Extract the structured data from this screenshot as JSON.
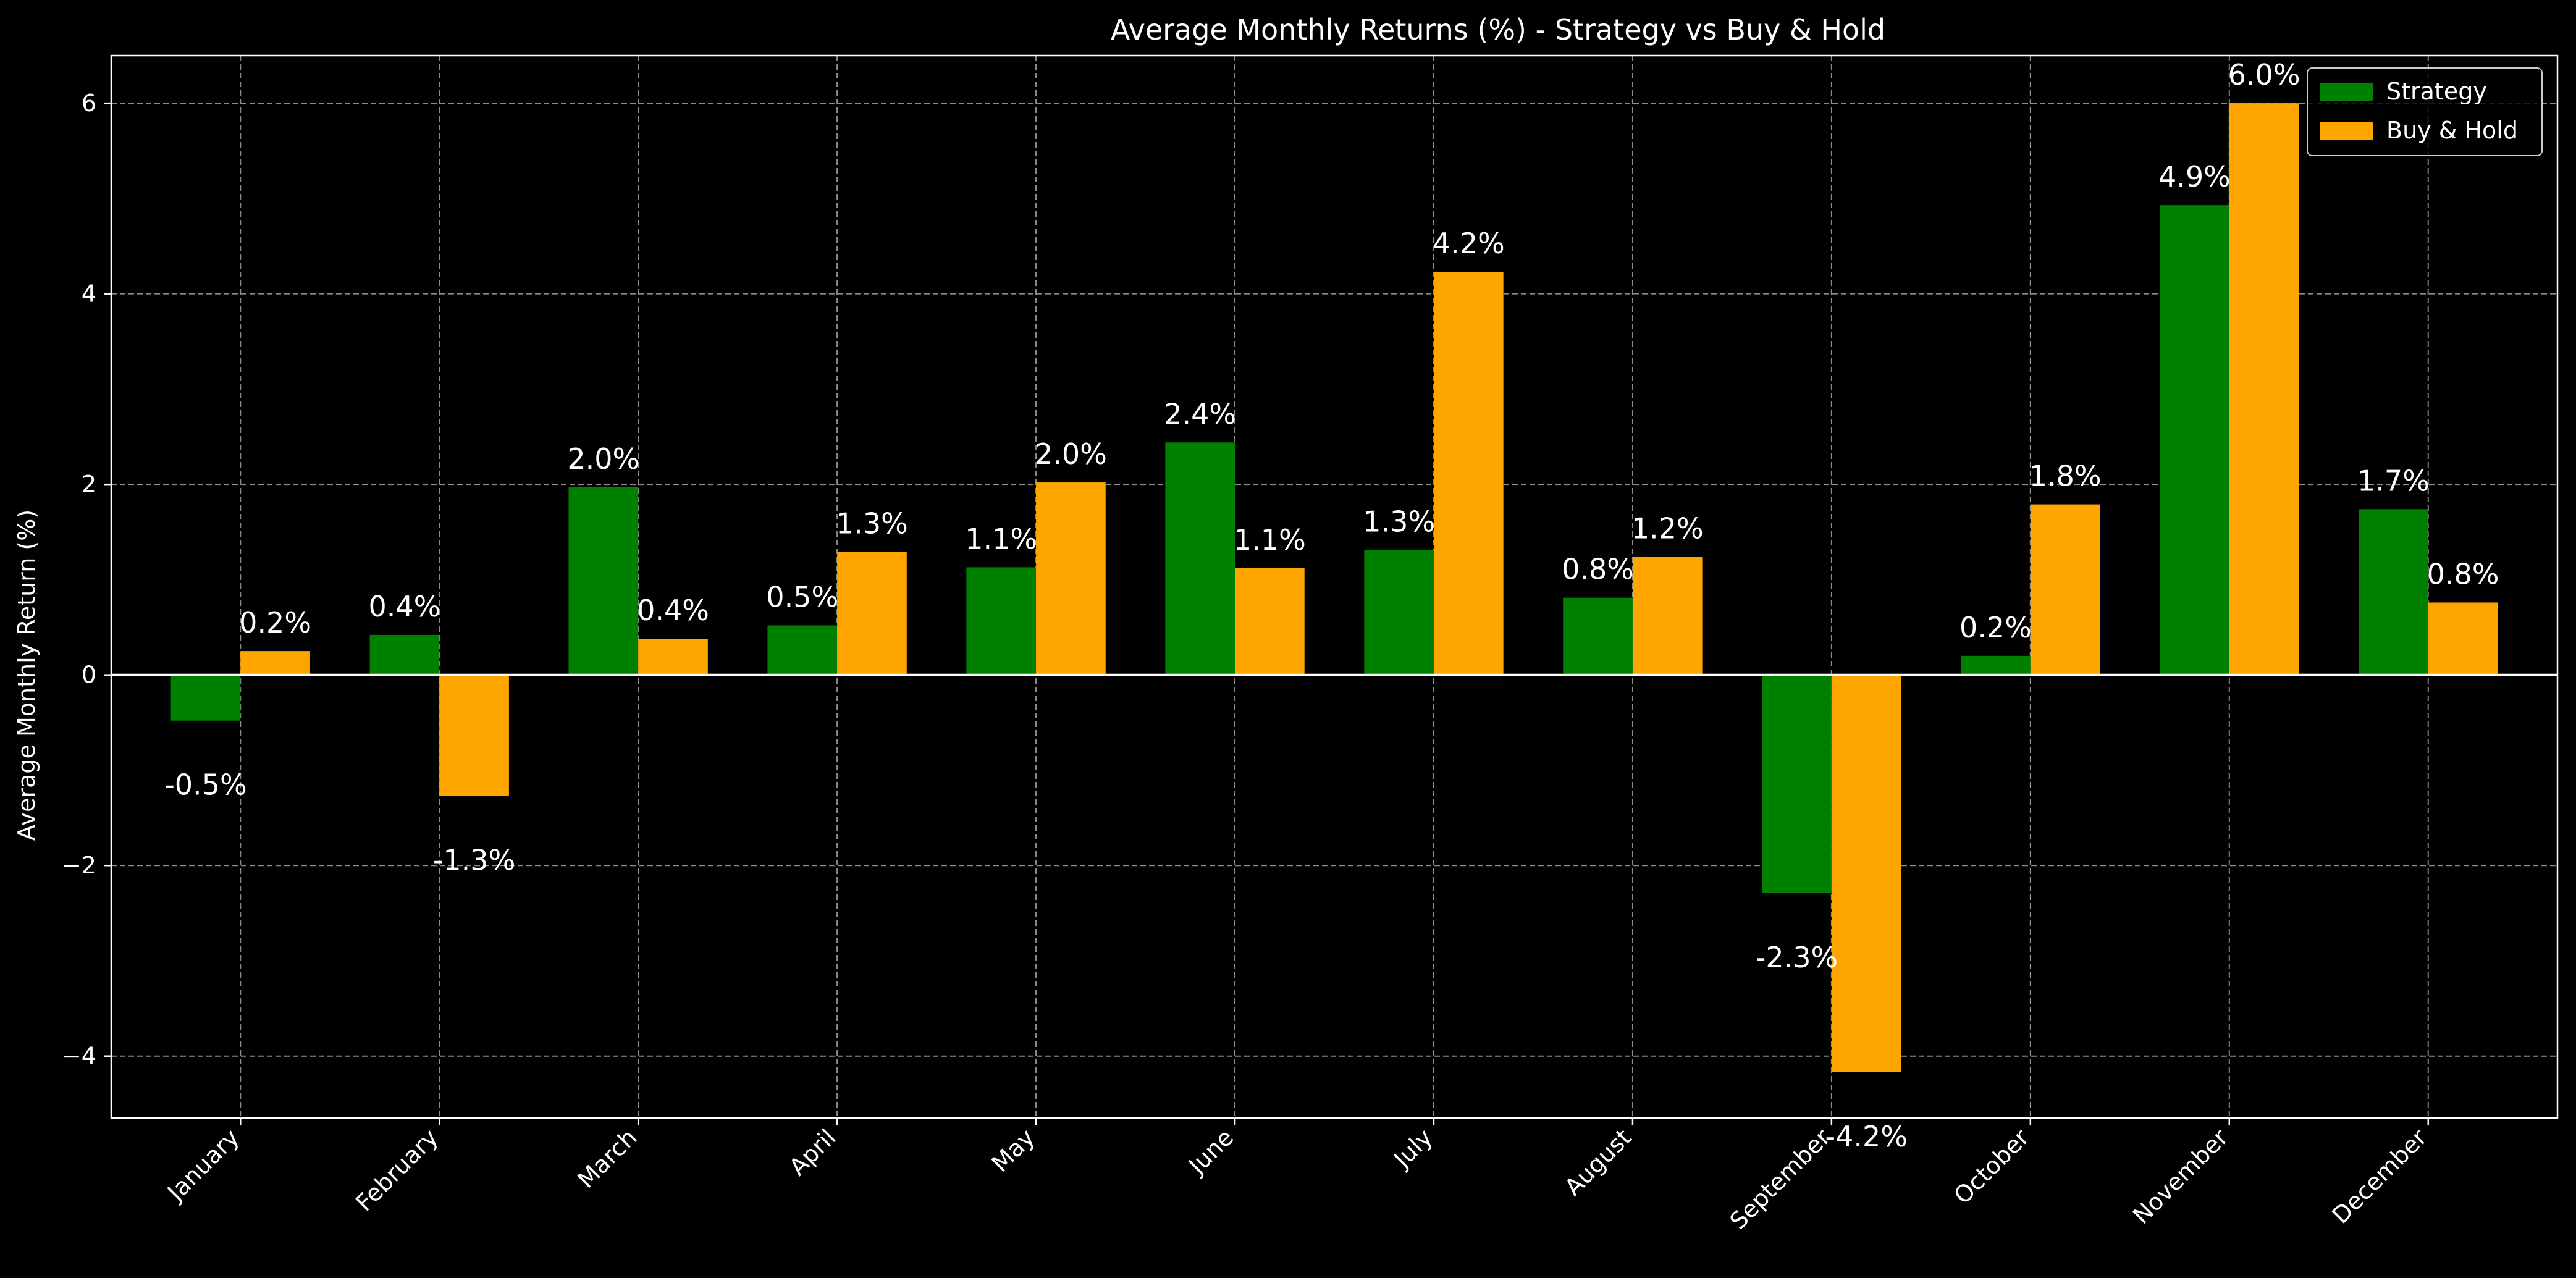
{
  "chart_data": {
    "type": "bar",
    "title": "Average Monthly Returns (%) - Strategy vs Buy & Hold",
    "xlabel": "",
    "ylabel": "Average Monthly Return (%)",
    "ylim": [
      -4.65,
      6.5
    ],
    "yticks": [
      -4,
      -2,
      0,
      2,
      4,
      6
    ],
    "ytick_labels": [
      "−4",
      "−2",
      "0",
      "2",
      "4",
      "6"
    ],
    "categories": [
      "January",
      "February",
      "March",
      "April",
      "May",
      "June",
      "July",
      "August",
      "September",
      "October",
      "November",
      "December"
    ],
    "series": [
      {
        "name": "Strategy",
        "color": "#008000",
        "values": [
          -0.48,
          0.42,
          1.97,
          0.52,
          1.13,
          2.44,
          1.31,
          0.81,
          -2.29,
          0.2,
          4.93,
          1.74
        ],
        "labels": [
          "-0.5%",
          "0.4%",
          "2.0%",
          "0.5%",
          "1.1%",
          "2.4%",
          "1.3%",
          "0.8%",
          "-2.3%",
          "0.2%",
          "4.9%",
          "1.7%"
        ]
      },
      {
        "name": "Buy & Hold",
        "color": "#ffa500",
        "values": [
          0.25,
          -1.27,
          0.38,
          1.29,
          2.02,
          1.12,
          4.23,
          1.24,
          -4.17,
          1.79,
          6.0,
          0.76
        ],
        "labels": [
          "0.2%",
          "-1.3%",
          "0.4%",
          "1.3%",
          "2.0%",
          "1.1%",
          "4.2%",
          "1.2%",
          "-4.2%",
          "1.8%",
          "6.0%",
          "0.8%"
        ]
      }
    ],
    "grid": true,
    "legend_position": "top-right",
    "background_color": "#000000",
    "foreground_color": "#ffffff"
  }
}
